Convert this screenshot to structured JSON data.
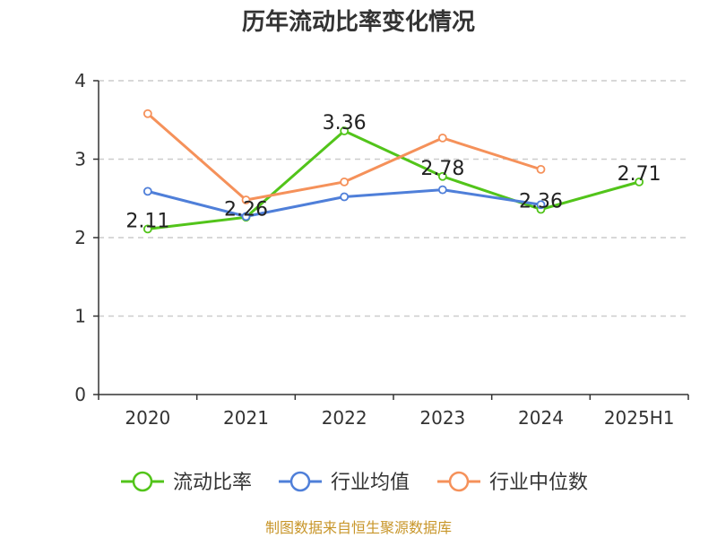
{
  "colors": {
    "current_ratio": "#52c41a",
    "industry_avg": "#4f7fd9",
    "industry_median": "#f5915a",
    "footer": "#c8962a",
    "grid": "#cccccc",
    "axis": "#333333"
  },
  "footer": "制图数据来自恒生聚源数据库",
  "chart_data": {
    "type": "line",
    "title": "历年流动比率变化情况",
    "categories": [
      "2020",
      "2021",
      "2022",
      "2023",
      "2024",
      "2025H1"
    ],
    "ylim": [
      0,
      4
    ],
    "yticks": [
      "0",
      "1",
      "2",
      "3",
      "4"
    ],
    "grid": true,
    "legend_position": "bottom",
    "series": [
      {
        "name": "流动比率",
        "color": "#52c41a",
        "values": [
          2.11,
          2.26,
          3.36,
          2.78,
          2.36,
          2.71
        ],
        "labels": [
          "2.11",
          "2.26",
          "3.36",
          "2.78",
          "2.36",
          "2.71"
        ]
      },
      {
        "name": "行业均值",
        "color": "#4f7fd9",
        "values": [
          2.59,
          2.27,
          2.52,
          2.61,
          2.42,
          null
        ]
      },
      {
        "name": "行业中位数",
        "color": "#f5915a",
        "values": [
          3.58,
          2.48,
          2.71,
          3.27,
          2.87,
          null
        ]
      }
    ]
  }
}
